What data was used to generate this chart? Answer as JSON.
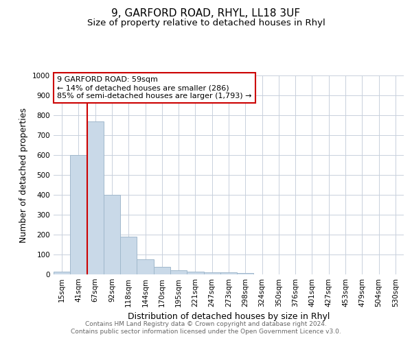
{
  "title1": "9, GARFORD ROAD, RHYL, LL18 3UF",
  "title2": "Size of property relative to detached houses in Rhyl",
  "xlabel": "Distribution of detached houses by size in Rhyl",
  "ylabel": "Number of detached properties",
  "categories": [
    "15sqm",
    "41sqm",
    "67sqm",
    "92sqm",
    "118sqm",
    "144sqm",
    "170sqm",
    "195sqm",
    "221sqm",
    "247sqm",
    "273sqm",
    "298sqm",
    "324sqm",
    "350sqm",
    "376sqm",
    "401sqm",
    "427sqm",
    "453sqm",
    "479sqm",
    "504sqm",
    "530sqm"
  ],
  "values": [
    15,
    600,
    770,
    400,
    190,
    75,
    38,
    20,
    15,
    12,
    10,
    8,
    0,
    0,
    0,
    0,
    0,
    0,
    0,
    0,
    0
  ],
  "bar_color": "#c9d9e8",
  "bar_edge_color": "#a0b8cc",
  "vline_x": 1.5,
  "vline_color": "#cc0000",
  "ylim": [
    0,
    1000
  ],
  "yticks": [
    0,
    100,
    200,
    300,
    400,
    500,
    600,
    700,
    800,
    900,
    1000
  ],
  "annotation_text": "9 GARFORD ROAD: 59sqm\n← 14% of detached houses are smaller (286)\n85% of semi-detached houses are larger (1,793) →",
  "annotation_box_color": "#ffffff",
  "annotation_box_edge": "#cc0000",
  "footer1": "Contains HM Land Registry data © Crown copyright and database right 2024.",
  "footer2": "Contains public sector information licensed under the Open Government Licence v3.0.",
  "bg_color": "#ffffff",
  "grid_color": "#c8d0dc",
  "title1_fontsize": 11,
  "title2_fontsize": 9.5,
  "axis_label_fontsize": 9,
  "tick_fontsize": 7.5,
  "footer_fontsize": 6.5,
  "annotation_fontsize": 8
}
